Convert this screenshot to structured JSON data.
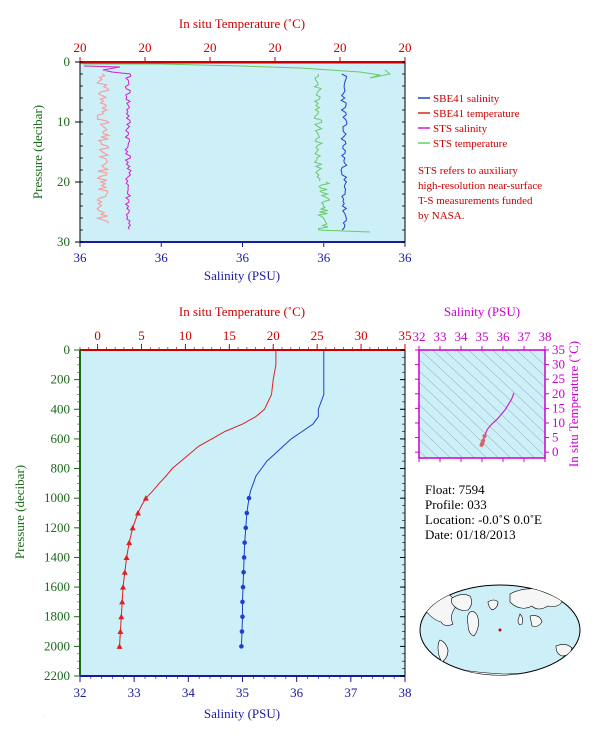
{
  "colors": {
    "salinity": "#1f3fd0",
    "temperature": "#e02020",
    "sts_salinity": "#cc22cc",
    "sts_temperature": "#66cc66",
    "sts_temp_light": "#f5a0a0",
    "plot_bg": "#cdeff8",
    "axis_blue": "#1a1aa0",
    "axis_red": "#cc0000",
    "axis_green": "#1a6a1a",
    "axis_magenta": "#cc00cc"
  },
  "top_panel": {
    "top_axis_label": "In situ Temperature (˚C)",
    "top_ticks": [
      "20",
      "20",
      "20",
      "20",
      "20",
      "20"
    ],
    "bottom_axis_label": "Salinity (PSU)",
    "bottom_ticks": [
      "36",
      "36",
      "36",
      "36",
      "36"
    ],
    "left_axis_label": "Pressure (decibar)",
    "left_ticks": [
      "0",
      "10",
      "20",
      "30"
    ]
  },
  "legend": {
    "items": [
      {
        "label": "SBE41 salinity",
        "color_key": "salinity"
      },
      {
        "label": "SBE41 temperature",
        "color_key": "temperature"
      },
      {
        "label": "STS salinity",
        "color_key": "sts_salinity"
      },
      {
        "label": "STS temperature",
        "color_key": "sts_temperature"
      }
    ],
    "note_lines": [
      "STS refers to auxiliary",
      "high-resolution near-surface",
      "T-S measurements funded",
      "by NASA."
    ]
  },
  "main_panel": {
    "top_axis_label": "In situ Temperature (˚C)",
    "top_ticks": [
      "0",
      "5",
      "10",
      "15",
      "20",
      "25",
      "30",
      "35"
    ],
    "bottom_axis_label": "Salinity (PSU)",
    "bottom_ticks": [
      "32",
      "33",
      "34",
      "35",
      "36",
      "37",
      "38"
    ],
    "left_axis_label": "Pressure (decibar)",
    "left_ticks": [
      "0",
      "200",
      "400",
      "600",
      "800",
      "1000",
      "1200",
      "1400",
      "1600",
      "1800",
      "2000",
      "2200"
    ]
  },
  "ts_panel": {
    "top_axis_label": "Salinity (PSU)",
    "top_ticks": [
      "32",
      "33",
      "34",
      "35",
      "36",
      "37",
      "38"
    ],
    "right_axis_label": "In situ Temperature (˚C)",
    "right_ticks": [
      "0",
      "5",
      "10",
      "15",
      "20",
      "25",
      "30",
      "35"
    ]
  },
  "info": {
    "float": "Float:  7594",
    "profile": "Profile:  033",
    "location": "Location:  -0.0˚S   0.0˚E",
    "date": "Date:  01/18/2013"
  },
  "chart_data": [
    {
      "type": "line",
      "panel": "main",
      "x_axis_bottom": "Salinity (PSU)",
      "x_axis_top": "In situ Temperature (˚C)",
      "y_axis": "Pressure (decibar)",
      "salinity_range": [
        32,
        38
      ],
      "temperature_range": [
        -2,
        35
      ],
      "pressure_range": [
        0,
        2200
      ],
      "series": [
        {
          "name": "SBE41 salinity",
          "pressure": [
            0,
            100,
            200,
            300,
            400,
            450,
            500,
            550,
            600,
            650,
            700,
            750,
            800,
            850,
            900,
            950,
            1000,
            1050,
            1100,
            1150,
            1200,
            1300,
            1400,
            1500,
            1600,
            1700,
            1800,
            1900,
            2000
          ],
          "values": [
            36.5,
            36.5,
            36.5,
            36.5,
            36.4,
            36.4,
            36.3,
            36.1,
            35.9,
            35.75,
            35.6,
            35.45,
            35.35,
            35.25,
            35.2,
            35.15,
            35.12,
            35.1,
            35.08,
            35.07,
            35.06,
            35.04,
            35.03,
            35.02,
            35.01,
            35.0,
            35.0,
            34.99,
            34.98
          ]
        },
        {
          "name": "SBE41 temperature",
          "pressure": [
            0,
            100,
            200,
            300,
            400,
            450,
            500,
            550,
            600,
            650,
            700,
            750,
            800,
            850,
            900,
            950,
            1000,
            1050,
            1100,
            1150,
            1200,
            1300,
            1400,
            1500,
            1600,
            1700,
            1800,
            1900,
            2000
          ],
          "values": [
            20.3,
            20.3,
            20.0,
            19.8,
            19.0,
            18.0,
            16.5,
            14.5,
            13.0,
            11.5,
            10.5,
            9.5,
            8.5,
            7.8,
            7.0,
            6.3,
            5.5,
            5.0,
            4.6,
            4.3,
            4.0,
            3.6,
            3.3,
            3.1,
            2.9,
            2.8,
            2.7,
            2.6,
            2.5
          ]
        }
      ]
    },
    {
      "type": "line",
      "panel": "near-surface",
      "x_axis_bottom": "Salinity (PSU)",
      "x_axis_top": "In situ Temperature (˚C)",
      "y_axis": "Pressure (decibar)",
      "pressure_range": [
        0,
        30
      ],
      "series": [
        {
          "name": "SBE41 salinity",
          "pressure": [
            0,
            2,
            5,
            8,
            10,
            12,
            15,
            18,
            20,
            22,
            25,
            27,
            28
          ],
          "values": [
            36.5,
            36.5,
            36.5,
            36.5,
            36.5,
            36.5,
            36.5,
            36.5,
            36.5,
            36.5,
            36.5,
            36.5,
            36.5
          ]
        },
        {
          "name": "SBE41 temperature",
          "pressure": [
            0,
            28
          ],
          "values": [
            20.3,
            20.3
          ]
        },
        {
          "name": "STS salinity",
          "pressure": [
            0,
            1,
            2,
            5,
            10,
            15,
            20,
            25,
            28
          ],
          "values": [
            36.1,
            36.1,
            36.2,
            36.2,
            36.2,
            36.2,
            36.2,
            36.2,
            36.2
          ]
        },
        {
          "name": "STS temperature",
          "pressure": [
            0,
            1,
            2,
            5,
            10,
            15,
            20,
            25,
            28
          ],
          "values": [
            20.4,
            20.6,
            20.5,
            20.3,
            20.3,
            20.3,
            20.3,
            20.3,
            20.3
          ]
        }
      ]
    },
    {
      "type": "line",
      "panel": "T-S diagram",
      "x_axis": "Salinity (PSU)",
      "y_axis": "In situ Temperature (˚C)",
      "xlim": [
        32,
        38
      ],
      "ylim": [
        -2,
        35
      ],
      "series": [
        {
          "name": "T-S profile",
          "x": [
            34.98,
            35.02,
            35.06,
            35.12,
            35.25,
            35.45,
            35.75,
            36.1,
            36.4,
            36.5,
            36.5
          ],
          "y": [
            2.5,
            3.1,
            4.0,
            5.5,
            7.8,
            9.5,
            11.5,
            14.5,
            18.0,
            19.8,
            20.3
          ]
        }
      ]
    }
  ]
}
